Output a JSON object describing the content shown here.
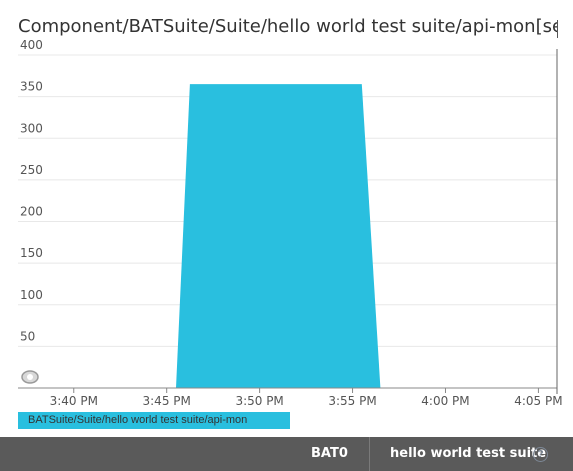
{
  "chart_data": {
    "type": "area",
    "title": "Component/BATSuite/Suite/hello world test suite/api-mon[seconds|",
    "xlabel": "",
    "ylabel": "",
    "ylim": [
      0,
      400
    ],
    "y_ticks": [
      "50",
      "100",
      "150",
      "200",
      "250",
      "300",
      "350",
      "400"
    ],
    "x_ticks": [
      "3:40 PM",
      "3:45 PM",
      "3:50 PM",
      "3:55 PM",
      "4:00 PM",
      "4:05 PM"
    ],
    "x_range": [
      "3:37 PM",
      "4:06 PM"
    ],
    "grid": true,
    "legend_position": "bottom-left",
    "series": [
      {
        "name": "BATSuite/Suite/hello world test suite/api-mon",
        "color": "#29bfdf",
        "points": [
          {
            "x": "3:45:30 PM",
            "y": 0
          },
          {
            "x": "3:46:15 PM",
            "y": 365
          },
          {
            "x": "3:55:30 PM",
            "y": 365
          },
          {
            "x": "3:56:30 PM",
            "y": 0
          }
        ]
      }
    ]
  },
  "footer": {
    "left_label": "BAT0",
    "right_label": "hello world test suite",
    "help_glyph": "?"
  },
  "colors": {
    "series": "#29bfdf",
    "footer_bg": "#5a5a5a",
    "grid": "#e8e8e8"
  }
}
